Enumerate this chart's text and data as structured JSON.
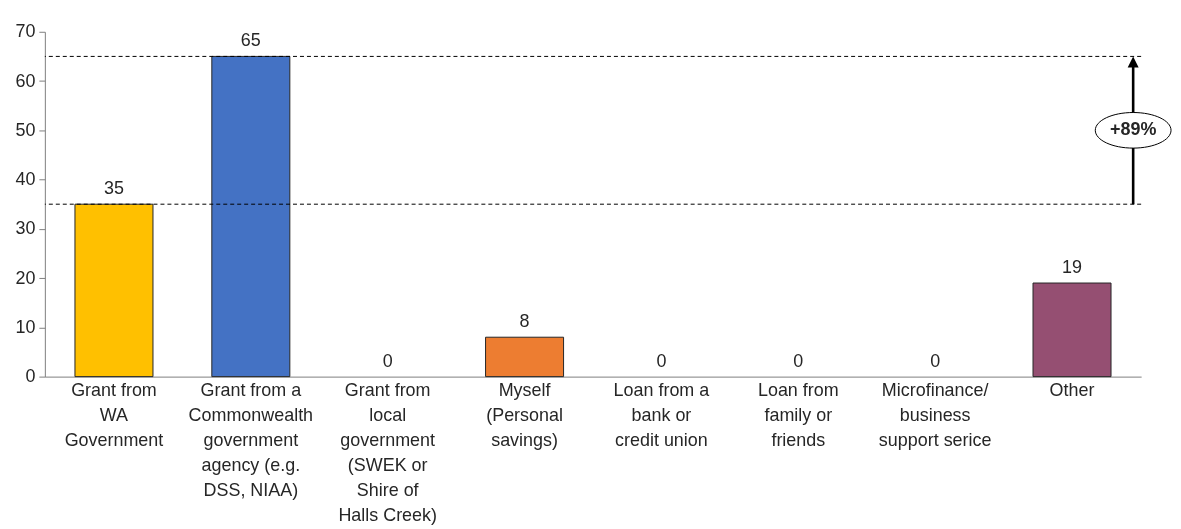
{
  "chart_data": {
    "type": "bar",
    "categories": [
      "Grant from\nWA\nGovernment",
      "Grant from a\nCommonwealth\ngovernment\nagency (e.g.\nDSS, NIAA)",
      "Grant from\nlocal\ngovernment\n(SWEK or\nShire of\nHalls Creek)",
      "Myself\n(Personal\nsavings)",
      "Loan from a\nbank or\ncredit union",
      "Loan from\nfamily or\nfriends",
      "Microfinance/\nbusiness\nsupport serice",
      "Other"
    ],
    "values": [
      35,
      65,
      0,
      8,
      0,
      0,
      0,
      19
    ],
    "colors": [
      "#ffc000",
      "#4472c4",
      null,
      "#ed7d31",
      null,
      null,
      null,
      "#954f72"
    ],
    "ylim": [
      0,
      70
    ],
    "yticks": [
      0,
      10,
      20,
      30,
      40,
      50,
      60,
      70
    ],
    "data_labels": true,
    "grid": false,
    "ref_lines": [
      {
        "axis": "y",
        "value": 35,
        "color": "#000000",
        "line_style": "dashed"
      },
      {
        "axis": "y",
        "value": 65,
        "color": "#000000",
        "line_style": "dashed"
      }
    ],
    "annotations": [
      "+89%"
    ]
  }
}
